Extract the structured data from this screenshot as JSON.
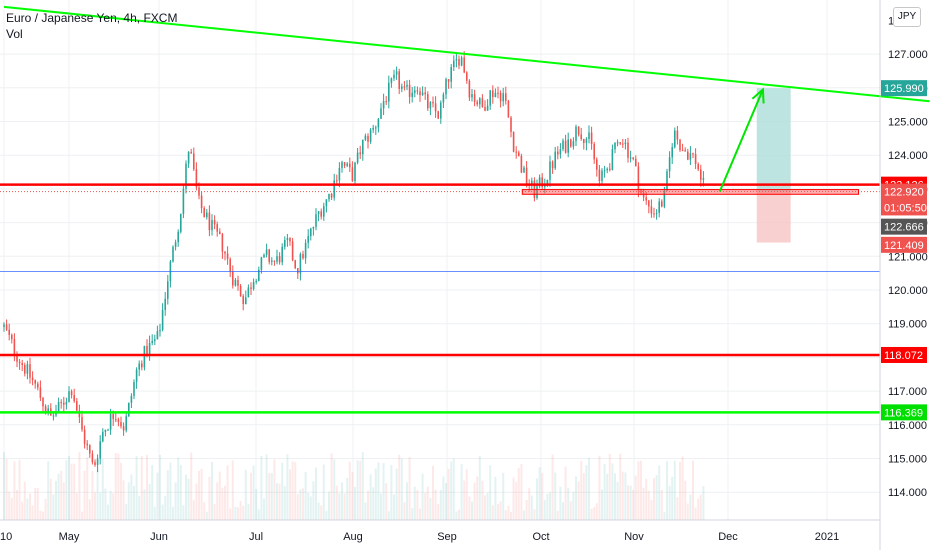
{
  "header": {
    "symbol_title": "Euro / Japanese Yen, 4h, FXCM",
    "volume_label": "Vol",
    "currency_button": "JPY"
  },
  "colors": {
    "up_candle": "#26a69a",
    "down_candle": "#ef5350",
    "support_resistance_red": "#ff0000",
    "trendline_green": "#00ff00",
    "projection_arrow": "#00e600",
    "target_zone": "#b2dfdb",
    "stop_zone": "#f8c8c8",
    "blue_line": "#2962ff"
  },
  "chart_data": {
    "type": "candlestick",
    "title": "Euro / Japanese Yen, 4h, FXCM",
    "ylabel": "JPY",
    "ylim": [
      113.5,
      128.2
    ],
    "x_axis_ticks": [
      "10",
      "May",
      "Jun",
      "Jul",
      "Aug",
      "Sep",
      "Oct",
      "Nov",
      "Dec",
      "2021"
    ],
    "y_axis_ticks": [
      114.0,
      115.0,
      116.0,
      117.0,
      118.0,
      119.0,
      120.0,
      121.0,
      122.0,
      123.0,
      124.0,
      125.0,
      126.0,
      127.0
    ],
    "price_path": [
      [
        "2020-04-06",
        118.9
      ],
      [
        "2020-04-10",
        118.1
      ],
      [
        "2020-04-16",
        117.2
      ],
      [
        "2020-04-21",
        116.2
      ],
      [
        "2020-04-24",
        116.5
      ],
      [
        "2020-04-28",
        117.1
      ],
      [
        "2020-05-01",
        115.9
      ],
      [
        "2020-05-05",
        114.7
      ],
      [
        "2020-05-08",
        115.8
      ],
      [
        "2020-05-12",
        116.4
      ],
      [
        "2020-05-15",
        115.9
      ],
      [
        "2020-05-19",
        117.6
      ],
      [
        "2020-05-22",
        118.2
      ],
      [
        "2020-05-26",
        118.6
      ],
      [
        "2020-05-29",
        120.3
      ],
      [
        "2020-06-02",
        122.2
      ],
      [
        "2020-06-05",
        124.3
      ],
      [
        "2020-06-08",
        122.6
      ],
      [
        "2020-06-12",
        121.9
      ],
      [
        "2020-06-16",
        121.3
      ],
      [
        "2020-06-19",
        120.4
      ],
      [
        "2020-06-23",
        119.7
      ],
      [
        "2020-06-26",
        120.4
      ],
      [
        "2020-06-30",
        121.0
      ],
      [
        "2020-07-03",
        120.8
      ],
      [
        "2020-07-07",
        121.4
      ],
      [
        "2020-07-10",
        120.6
      ],
      [
        "2020-07-14",
        121.6
      ],
      [
        "2020-07-17",
        122.3
      ],
      [
        "2020-07-21",
        122.9
      ],
      [
        "2020-07-24",
        123.8
      ],
      [
        "2020-07-28",
        123.4
      ],
      [
        "2020-07-31",
        124.3
      ],
      [
        "2020-08-04",
        124.8
      ],
      [
        "2020-08-07",
        125.6
      ],
      [
        "2020-08-11",
        126.3
      ],
      [
        "2020-08-14",
        125.8
      ],
      [
        "2020-08-18",
        126.1
      ],
      [
        "2020-08-21",
        125.5
      ],
      [
        "2020-08-25",
        125.2
      ],
      [
        "2020-08-28",
        126.3
      ],
      [
        "2020-09-01",
        127.0
      ],
      [
        "2020-09-04",
        125.9
      ],
      [
        "2020-09-08",
        125.4
      ],
      [
        "2020-09-11",
        125.9
      ],
      [
        "2020-09-15",
        125.8
      ],
      [
        "2020-09-18",
        124.4
      ],
      [
        "2020-09-22",
        123.3
      ],
      [
        "2020-09-25",
        122.9
      ],
      [
        "2020-09-29",
        123.4
      ],
      [
        "2020-10-02",
        124.0
      ],
      [
        "2020-10-06",
        124.4
      ],
      [
        "2020-10-09",
        124.8
      ],
      [
        "2020-10-13",
        124.4
      ],
      [
        "2020-10-16",
        123.2
      ],
      [
        "2020-10-20",
        123.9
      ],
      [
        "2020-10-23",
        124.6
      ],
      [
        "2020-10-27",
        123.8
      ],
      [
        "2020-10-30",
        122.7
      ],
      [
        "2020-11-03",
        122.3
      ],
      [
        "2020-11-06",
        122.7
      ],
      [
        "2020-11-09",
        124.7
      ],
      [
        "2020-11-12",
        124.2
      ],
      [
        "2020-11-16",
        123.9
      ],
      [
        "2020-11-19",
        123.0
      ]
    ],
    "horizontal_lines": [
      {
        "price": 123.126,
        "label": "123.126",
        "color": "red"
      },
      {
        "price": 118.072,
        "label": "118.072",
        "color": "red"
      },
      {
        "price": 116.369,
        "label": "116.369",
        "color": "green"
      },
      {
        "price": 120.55,
        "label": "",
        "color": "blue"
      }
    ],
    "trendline": {
      "start": [
        "2020-04-06",
        128.4
      ],
      "end": [
        "2021-01-31",
        125.6
      ]
    },
    "support_zone": {
      "from": "2020-09-21",
      "to": "2021-01-08",
      "high": 122.98,
      "low": 122.84
    },
    "projection_arrow": {
      "start": [
        "2020-11-24",
        122.92
      ],
      "end": [
        "2020-12-08",
        125.95
      ]
    },
    "long_position": {
      "from": "2020-12-06",
      "to": "2020-12-17",
      "target": 125.99,
      "entry": 122.92,
      "stop": 121.409
    },
    "price_labels": [
      {
        "text": "125.990",
        "price": 125.99,
        "bg": "#26a69a"
      },
      {
        "text": "123.126",
        "price": 123.126,
        "bg": "#ff0000"
      },
      {
        "text": "122.920",
        "price": 122.92,
        "bg": "#ef5350"
      },
      {
        "text": "01:05:50",
        "price": 122.45,
        "bg": "#ef5350"
      },
      {
        "text": "122.666",
        "price": 121.88,
        "bg": "#555555"
      },
      {
        "text": "121.409",
        "price": 121.34,
        "bg": "#ef5350"
      },
      {
        "text": "118.072",
        "price": 118.072,
        "bg": "#ff0000"
      },
      {
        "text": "116.369",
        "price": 116.369,
        "bg": "#00e000"
      }
    ]
  }
}
